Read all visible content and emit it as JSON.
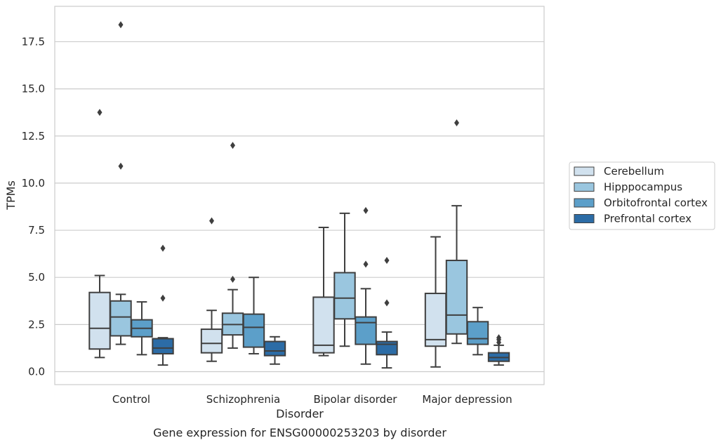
{
  "chart_data": {
    "type": "box",
    "xlabel": "Disorder",
    "ylabel": "TPMs",
    "caption": "Gene expression for ENSG00000253203 by disorder",
    "categories": [
      "Control",
      "Schizophrenia",
      "Bipolar disorder",
      "Major depression"
    ],
    "yticks": [
      "0.0",
      "2.5",
      "5.0",
      "7.5",
      "10.0",
      "12.5",
      "15.0",
      "17.5"
    ],
    "ylim": [
      -0.7,
      19.4
    ],
    "grid": "horizontal",
    "legend_position": "right",
    "series": [
      {
        "name": "Cerebellum",
        "color": "#d1e1ee",
        "boxes": [
          {
            "min": 0.75,
            "q1": 1.2,
            "median": 2.3,
            "q3": 4.2,
            "max": 5.1,
            "outliers": [
              13.75
            ]
          },
          {
            "min": 0.55,
            "q1": 1.0,
            "median": 1.5,
            "q3": 2.25,
            "max": 3.25,
            "outliers": [
              8.0
            ]
          },
          {
            "min": 0.85,
            "q1": 1.0,
            "median": 1.4,
            "q3": 3.95,
            "max": 7.65,
            "outliers": []
          },
          {
            "min": 0.25,
            "q1": 1.35,
            "median": 1.7,
            "q3": 4.15,
            "max": 7.15,
            "outliers": []
          }
        ]
      },
      {
        "name": "Hipppocampus",
        "color": "#9ac6df",
        "boxes": [
          {
            "min": 1.45,
            "q1": 1.9,
            "median": 2.9,
            "q3": 3.75,
            "max": 4.1,
            "outliers": [
              10.9,
              18.4
            ]
          },
          {
            "min": 1.25,
            "q1": 1.95,
            "median": 2.5,
            "q3": 3.1,
            "max": 4.35,
            "outliers": [
              4.9,
              12.0
            ]
          },
          {
            "min": 1.35,
            "q1": 2.8,
            "median": 3.9,
            "q3": 5.25,
            "max": 8.4,
            "outliers": []
          },
          {
            "min": 1.5,
            "q1": 2.0,
            "median": 3.0,
            "q3": 5.9,
            "max": 8.8,
            "outliers": [
              13.2
            ]
          }
        ]
      },
      {
        "name": "Orbitofrontal cortex",
        "color": "#5c9fc9",
        "boxes": [
          {
            "min": 0.9,
            "q1": 1.85,
            "median": 2.3,
            "q3": 2.75,
            "max": 3.7,
            "outliers": []
          },
          {
            "min": 0.95,
            "q1": 1.3,
            "median": 2.35,
            "q3": 3.05,
            "max": 5.0,
            "outliers": []
          },
          {
            "min": 0.4,
            "q1": 1.45,
            "median": 2.6,
            "q3": 2.9,
            "max": 4.4,
            "outliers": [
              5.7,
              8.55
            ]
          },
          {
            "min": 0.9,
            "q1": 1.45,
            "median": 1.75,
            "q3": 2.65,
            "max": 3.4,
            "outliers": []
          }
        ]
      },
      {
        "name": "Prefrontal cortex",
        "color": "#2c6ca6",
        "boxes": [
          {
            "min": 0.35,
            "q1": 0.95,
            "median": 1.25,
            "q3": 1.75,
            "max": 1.8,
            "outliers": [
              3.9,
              6.55
            ]
          },
          {
            "min": 0.4,
            "q1": 0.85,
            "median": 1.1,
            "q3": 1.6,
            "max": 1.85,
            "outliers": []
          },
          {
            "min": 0.2,
            "q1": 0.9,
            "median": 1.45,
            "q3": 1.6,
            "max": 2.1,
            "outliers": [
              3.65,
              5.9
            ]
          },
          {
            "min": 0.35,
            "q1": 0.55,
            "median": 0.75,
            "q3": 1.0,
            "max": 1.4,
            "outliers": [
              1.55,
              1.7,
              1.8
            ]
          }
        ]
      }
    ]
  }
}
